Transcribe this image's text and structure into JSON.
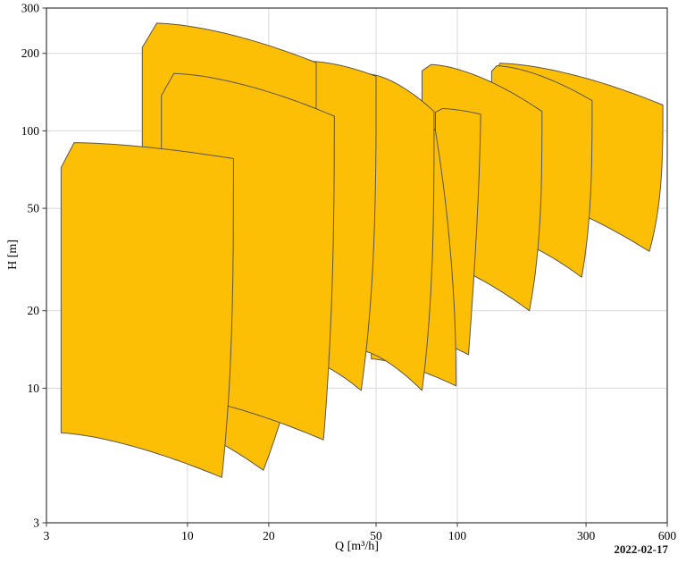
{
  "page": {
    "date_label": "2022-02-17"
  },
  "axes": {
    "x": {
      "label": "Q [m³/h]",
      "scale": "log",
      "min": 3,
      "max": 600,
      "ticks": [
        3,
        10,
        20,
        50,
        100,
        300,
        600
      ],
      "gridlines": [
        10,
        20,
        50,
        100,
        300
      ]
    },
    "y": {
      "label": "H [m]",
      "scale": "log",
      "min": 3,
      "max": 300,
      "ticks": [
        3,
        10,
        20,
        50,
        100,
        200,
        300
      ],
      "gridlines": [
        10,
        20,
        50,
        100,
        200
      ]
    }
  },
  "chart_data": {
    "type": "area",
    "title": "",
    "xlabel": "Q [m³/h]",
    "ylabel": "H [m]",
    "xlim": [
      3,
      600
    ],
    "ylim": [
      3,
      300
    ],
    "grid": "on",
    "legend": "none",
    "description": "Pump family coverage chart: overlapping H-Q operating envelopes on log-log axes. Each envelope: peak = top-left corner (Q,H), chamfer down to left edge at q_min, left edge down to h_bottom_left, bottom curve falling to tip (q_tip,h_tip), steep right edge up to (q_right,h_right), top curve back to peak. Array order = drawing order (back to front).",
    "curve_exponents": {
      "top": 1.6,
      "bottom": 1.5
    },
    "envelopes": [
      {
        "name": "envelope-10",
        "q_min": 140,
        "q_peak": 144,
        "h_peak": 183,
        "h_chamfer": 172,
        "h_bottom_left": 60,
        "q_right": 578,
        "h_right": 126,
        "q_tip": 515,
        "h_tip": 34,
        "right_lean": "late",
        "right_exp": 3
      },
      {
        "name": "envelope-9",
        "q_min": 134,
        "q_peak": 140,
        "h_peak": 179,
        "h_chamfer": 170,
        "h_bottom_left": 40,
        "q_right": 316,
        "h_right": 131,
        "q_tip": 289,
        "h_tip": 27,
        "right_lean": "late",
        "right_exp": 3
      },
      {
        "name": "envelope-8",
        "q_min": 74,
        "q_peak": 80,
        "h_peak": 181,
        "h_chamfer": 171,
        "h_bottom_left": 32,
        "q_right": 206,
        "h_right": 119,
        "q_tip": 185,
        "h_tip": 20,
        "right_lean": "late",
        "right_exp": 3
      },
      {
        "name": "envelope-7",
        "q_min": 83,
        "q_peak": 88,
        "h_peak": 122,
        "h_chamfer": 118,
        "h_bottom_left": 15,
        "q_right": 122,
        "h_right": 116,
        "q_tip": 110,
        "h_tip": 13.5,
        "right_lean": "late",
        "right_exp": 1.5
      },
      {
        "name": "envelope-6",
        "q_min": 48,
        "q_peak": 51,
        "h_peak": 162,
        "h_chamfer": 155,
        "h_bottom_left": 13,
        "q_right": 83,
        "h_right": 100,
        "q_tip": 99,
        "h_tip": 10.2,
        "right_lean": "early",
        "right_exp": 2
      },
      {
        "name": "envelope-5",
        "q_min": 44,
        "q_peak": 47,
        "h_peak": 166,
        "h_chamfer": 158,
        "h_bottom_left": 14,
        "q_right": 82,
        "h_right": 119,
        "q_tip": 74,
        "h_tip": 9.8,
        "right_lean": "late",
        "right_exp": 3
      },
      {
        "name": "envelope-4",
        "q_min": 27,
        "q_peak": 29,
        "h_peak": 186,
        "h_chamfer": 178,
        "h_bottom_left": 13,
        "q_right": 50,
        "h_right": 163,
        "q_tip": 44,
        "h_tip": 9.8,
        "right_lean": "late",
        "right_exp": 3
      },
      {
        "name": "envelope-3",
        "q_min": 6.8,
        "q_peak": 7.7,
        "h_peak": 262,
        "h_chamfer": 211,
        "h_bottom_left": 8,
        "q_right": 30,
        "h_right": 184,
        "q_tip": 19.1,
        "h_tip": 4.8,
        "right_lean": "late",
        "right_exp": 3
      },
      {
        "name": "envelope-2",
        "q_min": 8.0,
        "q_peak": 8.9,
        "h_peak": 167,
        "h_chamfer": 137,
        "h_bottom_left": 9.5,
        "q_right": 35,
        "h_right": 114,
        "q_tip": 31.9,
        "h_tip": 6.3,
        "right_lean": "late",
        "right_exp": 2.5
      },
      {
        "name": "envelope-1",
        "q_min": 3.4,
        "q_peak": 3.8,
        "h_peak": 90,
        "h_chamfer": 72,
        "h_bottom_left": 6.7,
        "q_right": 14.8,
        "h_right": 78,
        "q_tip": 13.4,
        "h_tip": 4.5,
        "right_lean": "late",
        "right_exp": 3
      }
    ]
  },
  "colors": {
    "background": "#ffffff",
    "envelope_fill": "#fcbf06",
    "envelope_stroke": "#5b5545",
    "grid": "#d9d9d9",
    "axis_border": "#3a3a3a",
    "text": "#000000"
  }
}
